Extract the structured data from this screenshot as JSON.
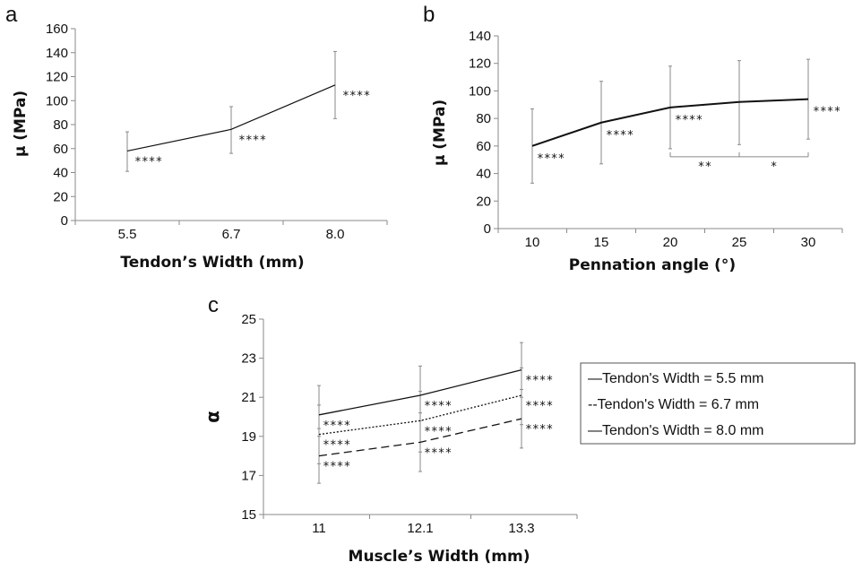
{
  "chart_data": [
    {
      "panel": "a",
      "type": "line",
      "categories": [
        "5.5",
        "6.7",
        "8.0"
      ],
      "values": [
        58,
        76,
        113
      ],
      "error": [
        [
          41,
          74
        ],
        [
          56,
          95
        ],
        [
          85,
          141
        ]
      ],
      "annotations": [
        "****",
        "****",
        "****"
      ],
      "xlabel": "Tendon’s Width (mm)",
      "ylabel": "μ (MPa)",
      "ylim": [
        0,
        160
      ],
      "yticks": [
        "0",
        "20",
        "40",
        "60",
        "80",
        "100",
        "120",
        "140",
        "160"
      ],
      "grid": false
    },
    {
      "panel": "b",
      "type": "line",
      "categories": [
        "10",
        "15",
        "20",
        "25",
        "30"
      ],
      "values": [
        60,
        77,
        88,
        92,
        94
      ],
      "error": [
        [
          33,
          87
        ],
        [
          47,
          107
        ],
        [
          58,
          118
        ],
        [
          61,
          122
        ],
        [
          65,
          123
        ]
      ],
      "annotations": [
        "****",
        "****",
        "****",
        "",
        "****"
      ],
      "brackets": [
        {
          "from": "20",
          "to": "25",
          "label": "**"
        },
        {
          "from": "25",
          "to": "30",
          "label": "*"
        }
      ],
      "xlabel": "Pennation angle (°)",
      "ylabel": "μ (MPa)",
      "ylim": [
        0,
        140
      ],
      "yticks": [
        "0",
        "20",
        "40",
        "60",
        "80",
        "100",
        "120",
        "140"
      ],
      "grid": false
    },
    {
      "panel": "c",
      "type": "line",
      "categories": [
        "11",
        "12.1",
        "13.3"
      ],
      "series": [
        {
          "name": "Tendon's Width = 5.5 mm",
          "values": [
            20.1,
            21.1,
            22.4
          ],
          "error": [
            [
              19.0,
              21.6
            ],
            [
              19.8,
              22.6
            ],
            [
              21.0,
              23.8
            ]
          ],
          "style": "solid"
        },
        {
          "name": "Tendon's Width = 6.7 mm",
          "values": [
            19.1,
            19.8,
            21.1
          ],
          "error": [
            [
              17.6,
              20.6
            ],
            [
              18.2,
              21.3
            ],
            [
              19.6,
              22.5
            ]
          ],
          "style": "dotted"
        },
        {
          "name": "Tendon's Width = 8.0 mm",
          "values": [
            18.0,
            18.7,
            19.9
          ],
          "error": [
            [
              16.6,
              19.4
            ],
            [
              17.2,
              20.2
            ],
            [
              18.4,
              21.4
            ]
          ],
          "style": "dashed"
        }
      ],
      "annotations": [
        "****",
        "****",
        "****"
      ],
      "xlabel": "Muscle’s Width (mm)",
      "ylabel": "α",
      "ylim": [
        15,
        25
      ],
      "yticks": [
        "15",
        "17",
        "19",
        "21",
        "23",
        "25"
      ],
      "legend_entries": [
        "—Tendon's Width = 5.5 mm",
        "--Tendon's Width = 6.7 mm",
        "—Tendon's Width = 8.0 mm"
      ],
      "legend": "right",
      "grid": false
    }
  ],
  "colors": {
    "line": "#111111",
    "errorbar": "#8a8a8a",
    "axis": "#8a8a8a"
  }
}
